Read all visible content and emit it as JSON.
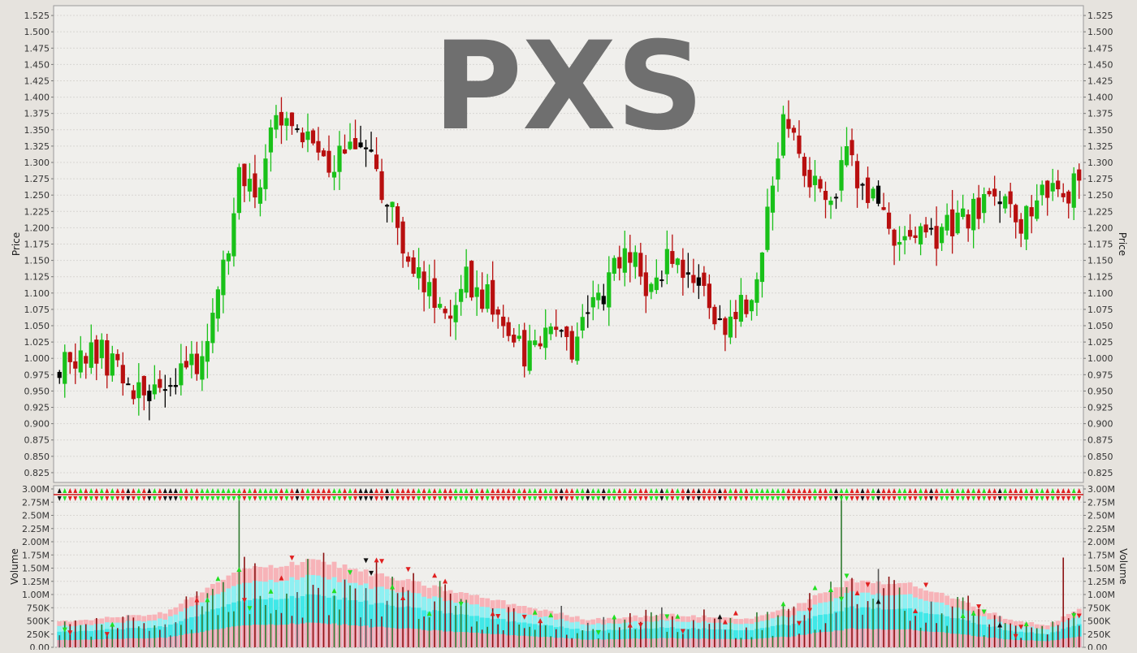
{
  "chart_data": [
    {
      "type": "candlestick",
      "title": "PXS",
      "ylabel": "Price",
      "ylim": [
        0.81,
        1.54
      ],
      "yticks": [
        "0.825",
        "0.850",
        "0.875",
        "0.900",
        "0.925",
        "0.950",
        "0.975",
        "1.000",
        "1.025",
        "1.050",
        "1.075",
        "1.100",
        "1.125",
        "1.150",
        "1.175",
        "1.200",
        "1.225",
        "1.250",
        "1.275",
        "1.300",
        "1.325",
        "1.350",
        "1.375",
        "1.400",
        "1.425",
        "1.450",
        "1.475",
        "1.500",
        "1.525"
      ],
      "grid": true,
      "colors": {
        "up": "#19c119",
        "down": "#b80f0f",
        "flat": "#000000"
      },
      "anchors": [
        {
          "i": 0,
          "v": 0.995
        },
        {
          "i": 8,
          "v": 1.005
        },
        {
          "i": 16,
          "v": 0.945
        },
        {
          "i": 22,
          "v": 0.975
        },
        {
          "i": 26,
          "v": 0.99
        },
        {
          "i": 30,
          "v": 1.1
        },
        {
          "i": 34,
          "v": 1.27
        },
        {
          "i": 38,
          "v": 1.27
        },
        {
          "i": 41,
          "v": 1.38
        },
        {
          "i": 46,
          "v": 1.33
        },
        {
          "i": 52,
          "v": 1.3
        },
        {
          "i": 55,
          "v": 1.34
        },
        {
          "i": 59,
          "v": 1.3
        },
        {
          "i": 62,
          "v": 1.25
        },
        {
          "i": 67,
          "v": 1.14
        },
        {
          "i": 73,
          "v": 1.05
        },
        {
          "i": 77,
          "v": 1.12
        },
        {
          "i": 83,
          "v": 1.08
        },
        {
          "i": 88,
          "v": 1.01
        },
        {
          "i": 92,
          "v": 1.05
        },
        {
          "i": 97,
          "v": 1.02
        },
        {
          "i": 101,
          "v": 1.08
        },
        {
          "i": 107,
          "v": 1.16
        },
        {
          "i": 111,
          "v": 1.12
        },
        {
          "i": 116,
          "v": 1.15
        },
        {
          "i": 121,
          "v": 1.11
        },
        {
          "i": 126,
          "v": 1.04
        },
        {
          "i": 131,
          "v": 1.1
        },
        {
          "i": 135,
          "v": 1.26
        },
        {
          "i": 137,
          "v": 1.38
        },
        {
          "i": 141,
          "v": 1.28
        },
        {
          "i": 145,
          "v": 1.24
        },
        {
          "i": 149,
          "v": 1.3
        },
        {
          "i": 153,
          "v": 1.26
        },
        {
          "i": 157,
          "v": 1.2
        },
        {
          "i": 163,
          "v": 1.18
        },
        {
          "i": 169,
          "v": 1.2
        },
        {
          "i": 173,
          "v": 1.22
        },
        {
          "i": 177,
          "v": 1.25
        },
        {
          "i": 182,
          "v": 1.21
        },
        {
          "i": 186,
          "v": 1.25
        },
        {
          "i": 190,
          "v": 1.24
        },
        {
          "i": 193,
          "v": 1.27
        }
      ]
    },
    {
      "type": "volume",
      "ylabel": "Volume",
      "ylim": [
        0,
        3000000
      ],
      "yticks": [
        "0.00",
        "250K",
        "500K",
        "750K",
        "1.00M",
        "1.25M",
        "1.50M",
        "1.75M",
        "2.00M",
        "2.25M",
        "2.50M",
        "2.75M",
        "3.00M"
      ],
      "grid": true,
      "colors": {
        "up": "#2f7a2f",
        "down": "#8b1111",
        "flat": "#555555",
        "band_outer": "#f7b3b8",
        "band_mid": "#40e8e8",
        "band_inner": "#8ef0f2",
        "band_base": "#f2a8b8"
      },
      "average_volume": [
        {
          "i": 0,
          "v": 480000
        },
        {
          "i": 20,
          "v": 650000
        },
        {
          "i": 34,
          "v": 1450000
        },
        {
          "i": 42,
          "v": 1560000
        },
        {
          "i": 48,
          "v": 1680000
        },
        {
          "i": 58,
          "v": 1420000
        },
        {
          "i": 70,
          "v": 1160000
        },
        {
          "i": 85,
          "v": 840000
        },
        {
          "i": 100,
          "v": 530000
        },
        {
          "i": 115,
          "v": 620000
        },
        {
          "i": 130,
          "v": 540000
        },
        {
          "i": 138,
          "v": 720000
        },
        {
          "i": 145,
          "v": 1050000
        },
        {
          "i": 150,
          "v": 1250000
        },
        {
          "i": 160,
          "v": 1230000
        },
        {
          "i": 170,
          "v": 900000
        },
        {
          "i": 180,
          "v": 520000
        },
        {
          "i": 187,
          "v": 420000
        },
        {
          "i": 193,
          "v": 720000
        }
      ],
      "spikes": [
        {
          "i": 34,
          "v": 2900000
        },
        {
          "i": 148,
          "v": 2900000
        },
        {
          "i": 190,
          "v": 1700000
        }
      ]
    }
  ]
}
